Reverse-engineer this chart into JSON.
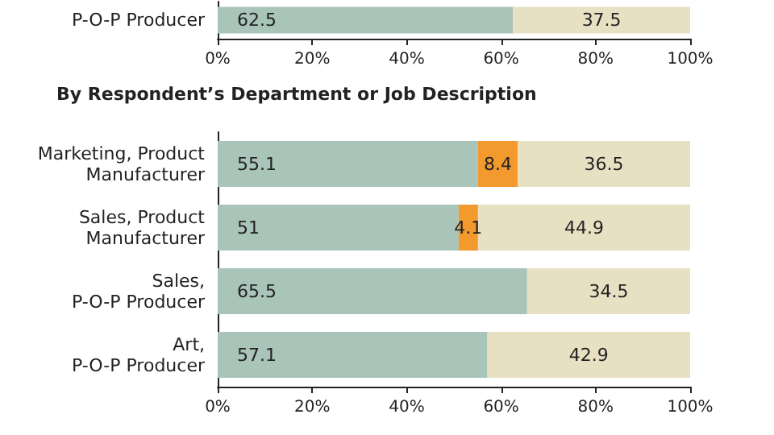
{
  "chart_data": [
    {
      "type": "bar",
      "orientation": "horizontal",
      "stacked": true,
      "categories": [
        "P-O-P Producer"
      ],
      "series": [
        {
          "color": "#a9c5b9",
          "values": [
            62.5
          ]
        },
        {
          "color": "#e7e0c2",
          "values": [
            37.5
          ]
        }
      ],
      "xlim": [
        0,
        100
      ],
      "xticks": [
        {
          "value": 0,
          "label": "0%"
        },
        {
          "value": 20,
          "label": "20%"
        },
        {
          "value": 40,
          "label": "40%"
        },
        {
          "value": 60,
          "label": "60%"
        },
        {
          "value": 80,
          "label": "80%"
        },
        {
          "value": 100,
          "label": "100%"
        }
      ],
      "data_labels": true,
      "grid": false
    },
    {
      "type": "bar",
      "orientation": "horizontal",
      "stacked": true,
      "title": "By Respondent’s Department or Job Description",
      "categories": [
        "Marketing, Product\nManufacturer",
        "Sales, Product\nManufacturer",
        "Sales,\nP-O-P Producer",
        "Art,\nP-O-P Producer"
      ],
      "series": [
        {
          "color": "#a9c5b9",
          "values": [
            55.1,
            51,
            65.5,
            57.1
          ]
        },
        {
          "color": "#f29a2e",
          "values": [
            8.4,
            4.1,
            null,
            null
          ]
        },
        {
          "color": "#e7e0c2",
          "values": [
            36.5,
            44.9,
            34.5,
            42.9
          ]
        }
      ],
      "xlim": [
        0,
        100
      ],
      "xticks": [
        {
          "value": 0,
          "label": "0%"
        },
        {
          "value": 20,
          "label": "20%"
        },
        {
          "value": 40,
          "label": "40%"
        },
        {
          "value": 60,
          "label": "60%"
        },
        {
          "value": 80,
          "label": "80%"
        },
        {
          "value": 100,
          "label": "100%"
        }
      ],
      "data_labels": true,
      "grid": false
    }
  ]
}
